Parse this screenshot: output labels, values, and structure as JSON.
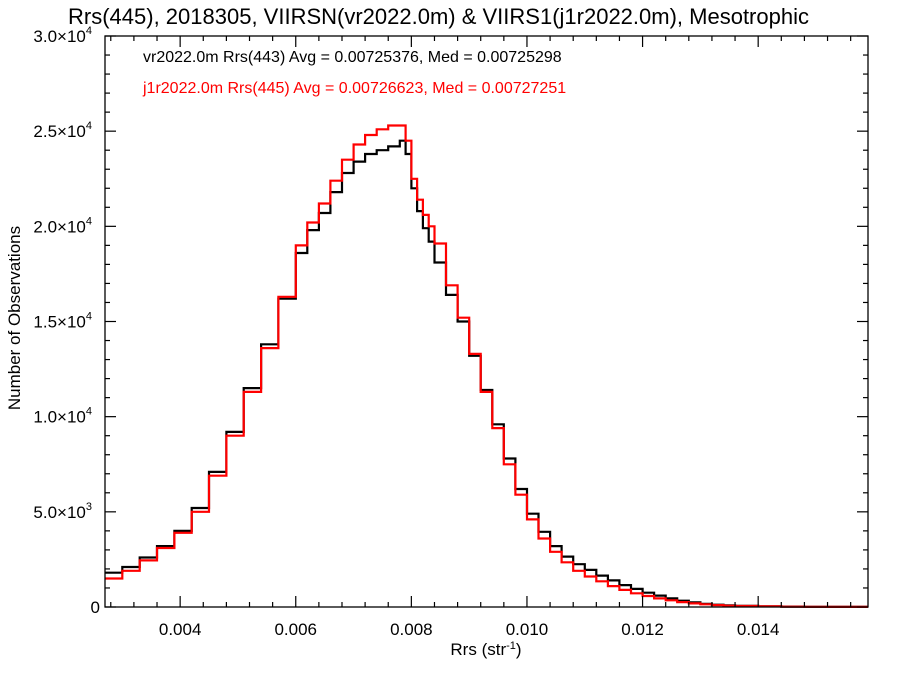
{
  "chart_data": {
    "type": "line",
    "title": "Rrs(445), 2018305, VIIRSN(vr2022.0m) & VIIRS1(j1r2022.0m), Mesotrophic",
    "xlabel": "Rrs (str",
    "xlabel_sup": "-1",
    "xlabel_suffix": ")",
    "ylabel": "Number of Observations",
    "xlim": [
      0.0027,
      0.0159
    ],
    "ylim": [
      0,
      30000
    ],
    "grid": false,
    "legend_placement": "top-left",
    "x_ticks": [
      {
        "value": 0.004,
        "label": "0.004"
      },
      {
        "value": 0.006,
        "label": "0.006"
      },
      {
        "value": 0.008,
        "label": "0.008"
      },
      {
        "value": 0.01,
        "label": "0.010"
      },
      {
        "value": 0.012,
        "label": "0.012"
      },
      {
        "value": 0.014,
        "label": "0.014"
      }
    ],
    "y_ticks": [
      {
        "value": 0,
        "mant": "0",
        "exp": ""
      },
      {
        "value": 5000,
        "mant": "5.0×10",
        "exp": "3"
      },
      {
        "value": 10000,
        "mant": "1.0×10",
        "exp": "4"
      },
      {
        "value": 15000,
        "mant": "1.5×10",
        "exp": "4"
      },
      {
        "value": 20000,
        "mant": "2.0×10",
        "exp": "4"
      },
      {
        "value": 25000,
        "mant": "2.5×10",
        "exp": "4"
      },
      {
        "value": 30000,
        "mant": "3.0×10",
        "exp": "4"
      }
    ],
    "series": [
      {
        "name": "vr2022.0m Rrs(443) Avg = 0.00725376, Med = 0.00725298",
        "color": "#000000",
        "x": [
          0.0027,
          0.003,
          0.0033,
          0.0036,
          0.0039,
          0.0042,
          0.0045,
          0.0048,
          0.0051,
          0.0054,
          0.0057,
          0.006,
          0.0062,
          0.0064,
          0.0066,
          0.0068,
          0.007,
          0.0072,
          0.0074,
          0.0076,
          0.0078,
          0.0079,
          0.008,
          0.0081,
          0.0082,
          0.0083,
          0.0084,
          0.0086,
          0.0088,
          0.009,
          0.0092,
          0.0094,
          0.0096,
          0.0098,
          0.01,
          0.0102,
          0.0104,
          0.0106,
          0.0108,
          0.011,
          0.0112,
          0.0114,
          0.0116,
          0.0118,
          0.012,
          0.0122,
          0.0124,
          0.0126,
          0.0128,
          0.013,
          0.0132,
          0.0134,
          0.0136,
          0.014,
          0.0144,
          0.0148,
          0.0152,
          0.0156,
          0.0159
        ],
        "y": [
          1800,
          2100,
          2600,
          3200,
          4000,
          5200,
          7100,
          9200,
          11500,
          13800,
          16200,
          18600,
          19800,
          20700,
          21800,
          22800,
          23400,
          23800,
          24000,
          24200,
          24500,
          23800,
          22000,
          20800,
          19900,
          19200,
          18100,
          16400,
          15000,
          13200,
          11400,
          9600,
          7800,
          6200,
          4900,
          3950,
          3200,
          2650,
          2250,
          1950,
          1650,
          1400,
          1150,
          950,
          750,
          600,
          450,
          330,
          240,
          170,
          120,
          85,
          60,
          35,
          20,
          12,
          8,
          5,
          3
        ]
      },
      {
        "name": "j1r2022.0m Rrs(445) Avg = 0.00726623, Med = 0.00727251",
        "color": "#ff0000",
        "x": [
          0.0027,
          0.003,
          0.0033,
          0.0036,
          0.0039,
          0.0042,
          0.0045,
          0.0048,
          0.0051,
          0.0054,
          0.0057,
          0.006,
          0.0062,
          0.0064,
          0.0066,
          0.0068,
          0.007,
          0.0072,
          0.0074,
          0.0076,
          0.0078,
          0.0079,
          0.008,
          0.0081,
          0.0082,
          0.0083,
          0.0084,
          0.0086,
          0.0088,
          0.009,
          0.0092,
          0.0094,
          0.0096,
          0.0098,
          0.01,
          0.0102,
          0.0104,
          0.0106,
          0.0108,
          0.011,
          0.0112,
          0.0114,
          0.0116,
          0.0118,
          0.012,
          0.0122,
          0.0124,
          0.0126,
          0.0128,
          0.013,
          0.0132,
          0.0134,
          0.0136,
          0.014,
          0.0144,
          0.0148,
          0.0152,
          0.0156,
          0.0159
        ],
        "y": [
          1500,
          1900,
          2450,
          3100,
          3900,
          5000,
          6900,
          9000,
          11300,
          13600,
          16300,
          19000,
          20200,
          21200,
          22400,
          23500,
          24300,
          24800,
          25100,
          25300,
          25300,
          24500,
          22500,
          21400,
          20600,
          20000,
          19100,
          16900,
          15200,
          13300,
          11300,
          9400,
          7500,
          5900,
          4600,
          3600,
          2900,
          2350,
          1900,
          1600,
          1350,
          1100,
          900,
          720,
          580,
          450,
          350,
          260,
          190,
          140,
          100,
          70,
          50,
          30,
          18,
          10,
          6,
          4,
          2
        ]
      }
    ]
  }
}
